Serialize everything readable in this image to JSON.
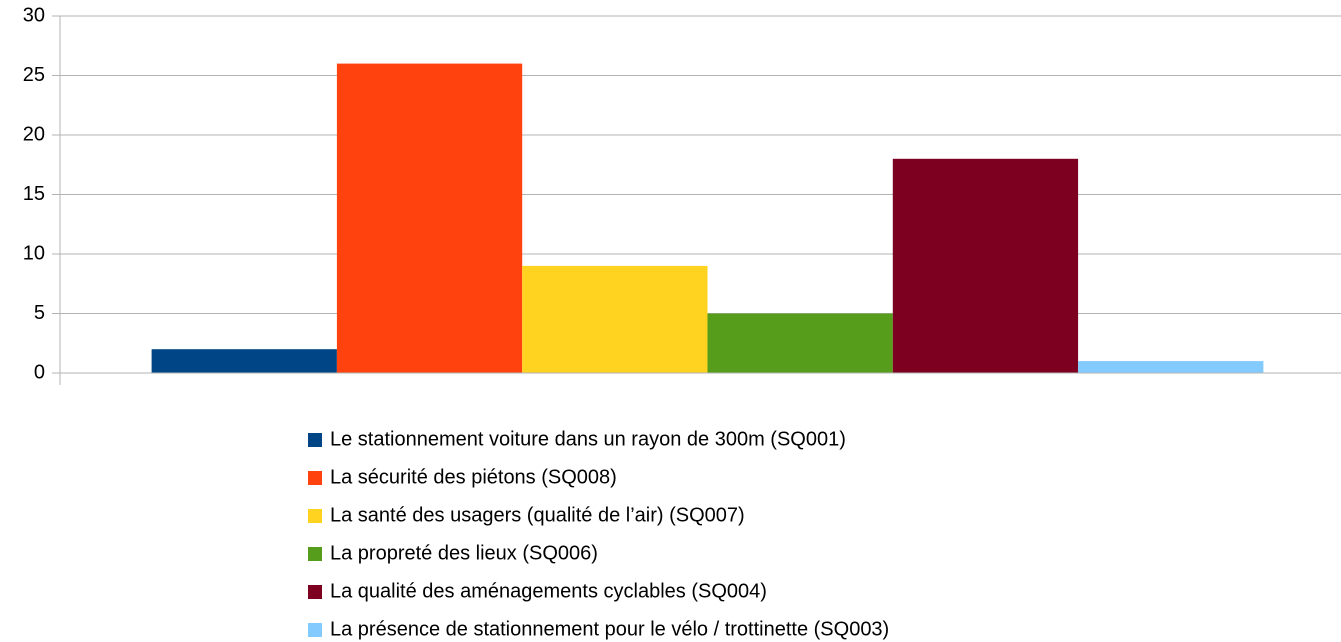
{
  "chart_data": {
    "type": "bar",
    "categories": [
      null
    ],
    "series": [
      {
        "name": "Le stationnement voiture dans un rayon de 300m (SQ001)",
        "color": "#004586",
        "values": [
          2
        ]
      },
      {
        "name": "La sécurité des piétons (SQ008)",
        "color": "#ff420e",
        "values": [
          26
        ]
      },
      {
        "name": "La santé des usagers (qualité de l’air) (SQ007)",
        "color": "#ffd320",
        "values": [
          9
        ]
      },
      {
        "name": "La propreté des lieux (SQ006)",
        "color": "#579d1c",
        "values": [
          5
        ]
      },
      {
        "name": "La qualité des aménagements cyclables (SQ004)",
        "color": "#7e0021",
        "values": [
          18
        ]
      },
      {
        "name": "La présence de stationnement pour le vélo / trottinette (SQ003)",
        "color": "#83caff",
        "values": [
          1
        ]
      }
    ],
    "ylim": [
      0,
      30
    ],
    "yticks": [
      0,
      5,
      10,
      15,
      20,
      25,
      30
    ],
    "grid": true,
    "legend": "bottom"
  }
}
